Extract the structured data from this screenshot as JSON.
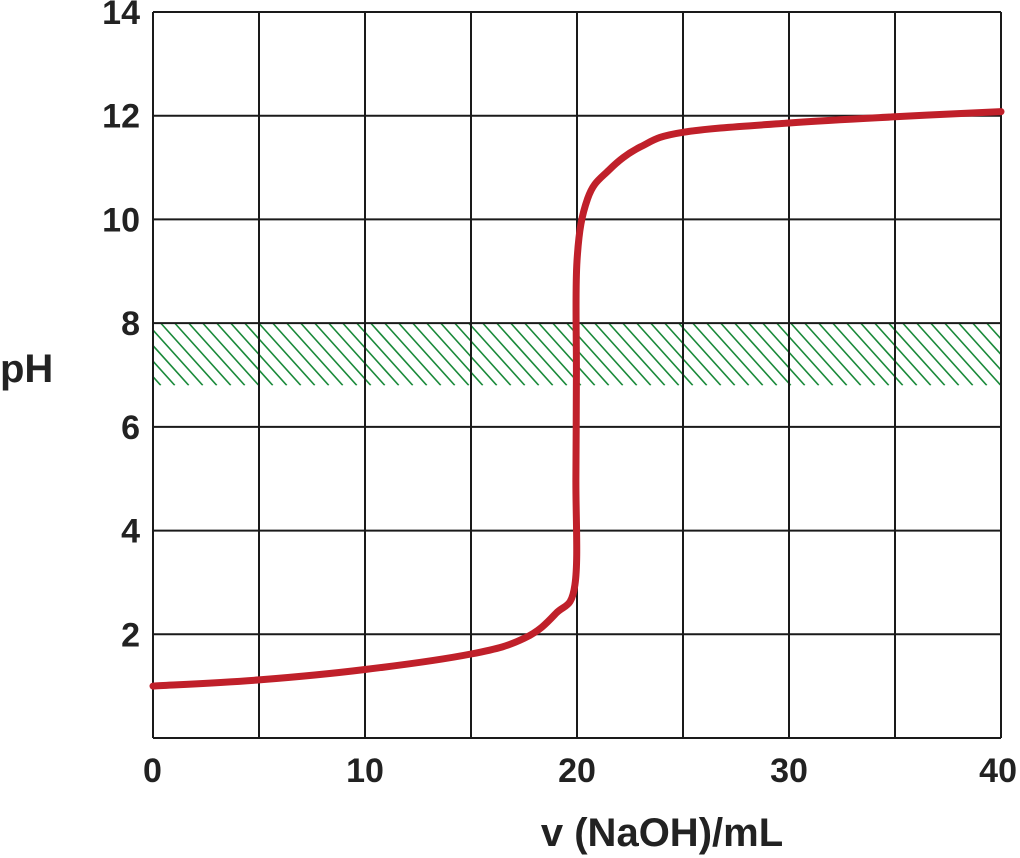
{
  "chart_data": {
    "type": "line",
    "title": "",
    "xlabel": "v (NaOH)/mL",
    "ylabel": "pH",
    "xlim": [
      0,
      40
    ],
    "ylim": [
      0,
      14
    ],
    "x_ticks": [
      0,
      10,
      20,
      30,
      40
    ],
    "x_tick_labels": [
      "0",
      "10",
      "20",
      "30",
      "40"
    ],
    "y_ticks": [
      2,
      4,
      6,
      8,
      10,
      12,
      14
    ],
    "y_tick_labels": [
      "2",
      "4",
      "6",
      "8",
      "10",
      "12",
      "14"
    ],
    "grid": true,
    "grid_x": [
      0,
      5,
      10,
      15,
      20,
      25,
      30,
      35,
      40
    ],
    "grid_y": [
      0,
      2,
      4,
      6,
      8,
      10,
      12,
      14
    ],
    "shaded_band": {
      "y_range": [
        6.8,
        8.0
      ],
      "x_range": [
        0,
        40
      ],
      "pattern": "hatched",
      "color": "#1a8a3a"
    },
    "series": [
      {
        "color": "#c0202a",
        "points": [
          [
            0,
            1.0
          ],
          [
            5,
            1.12
          ],
          [
            10,
            1.32
          ],
          [
            15,
            1.62
          ],
          [
            17.5,
            1.92
          ],
          [
            19,
            2.4
          ],
          [
            19.9,
            2.95
          ],
          [
            19.95,
            5.0
          ],
          [
            19.97,
            7.0
          ],
          [
            20.0,
            9.2
          ],
          [
            20.5,
            10.4
          ],
          [
            21.5,
            10.95
          ],
          [
            23,
            11.4
          ],
          [
            25,
            11.68
          ],
          [
            30,
            11.86
          ],
          [
            35,
            11.98
          ],
          [
            40,
            12.08
          ]
        ]
      }
    ]
  }
}
